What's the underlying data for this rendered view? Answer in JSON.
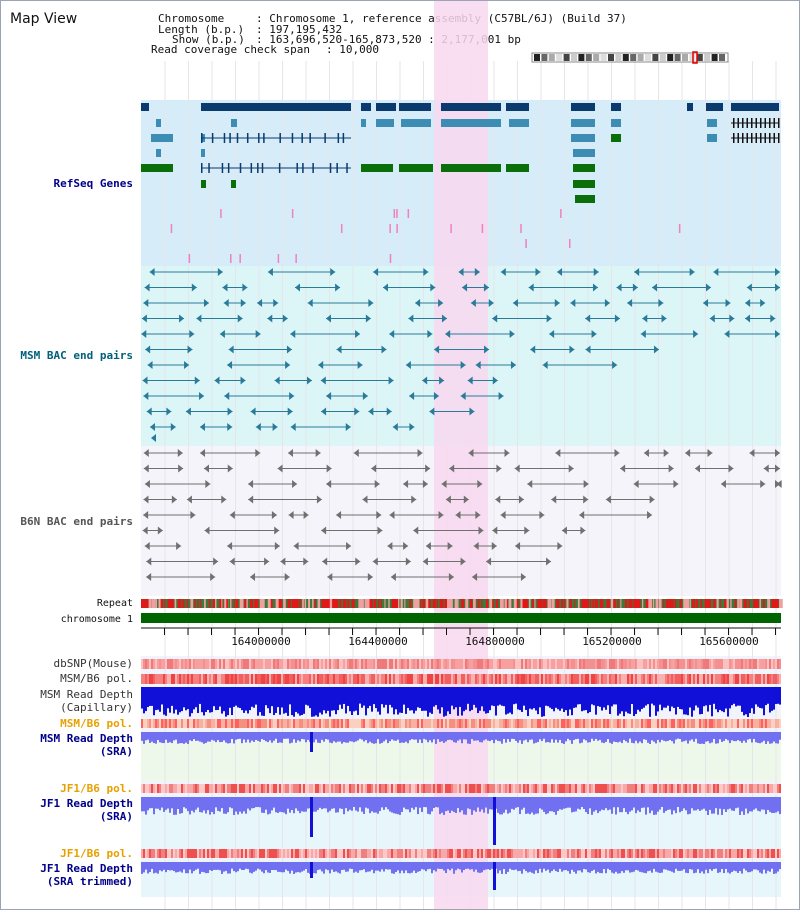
{
  "view_title": "Map View",
  "header": {
    "chromosome_key": "Chromosome",
    "chromosome_val": ": Chromosome 1, reference assembly (C57BL/6J) (Build 37)",
    "length_key": "Length (b.p.)",
    "length_val": ": 197,195,432",
    "show_key": "Show (b.p.)",
    "show_val": ": 163,696,520-165,873,520 : 2,177,001 bp",
    "coverage_key": "Read coverage check span",
    "coverage_val": ": 10,000"
  },
  "tracks": {
    "refseq": "RefSeq Genes",
    "msm_bac": "MSM BAC end pairs",
    "b6n_bac": "B6N BAC end pairs",
    "repeat": "Repeat",
    "chromosome": "chromosome 1",
    "dbsnp": "dbSNP(Mouse)",
    "msm_b6_pol": "MSM/B6 pol.",
    "msm_depth_cap_1": "MSM Read Depth",
    "msm_depth_cap_2": "(Capillary)",
    "msm_b6_pol_2": "MSM/B6 pol.",
    "msm_depth_sra_1": "MSM Read Depth",
    "msm_depth_sra_2": "(SRA)",
    "jf1_b6_pol": "JF1/B6 pol.",
    "jf1_depth_sra_1": "JF1 Read Depth",
    "jf1_depth_sra_2": "(SRA)",
    "jf1_b6_pol_2": "JF1/B6 pol.",
    "jf1_depth_trim_1": "JF1 Read Depth",
    "jf1_depth_trim_2": "(SRA trimmed)"
  },
  "axis_ticks": [
    "164000000",
    "164400000",
    "164800000",
    "165200000",
    "165600000"
  ],
  "colors": {
    "highlight": "#f8d8f0",
    "refseq_bg": "#d6ecf8",
    "msm_bg": "#dcf6f8",
    "b6n_bg": "#f4f4fa",
    "gene_dark": "#0a3a6e",
    "gene_mid": "#3c8cb4",
    "gene_green": "#0a6e0a",
    "bac_teal": "#2a7a9a",
    "bac_gray": "#707070",
    "chrom_green": "#006400",
    "repeat_red": "#e01818",
    "depth_blue": "#1010d8",
    "depth_light": "#7070f0"
  }
}
